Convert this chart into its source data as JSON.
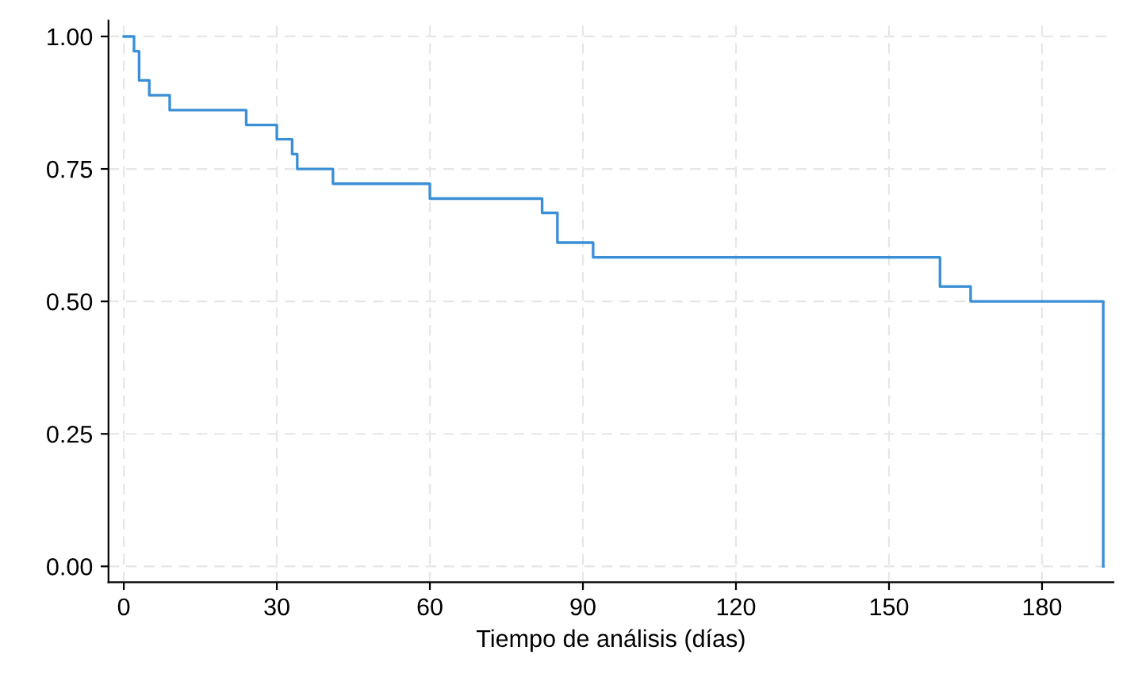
{
  "chart_data": {
    "type": "step",
    "xlabel": "Tiempo de análisis (días)",
    "series": [
      {
        "color": "#3a8fd6",
        "x": [
          0,
          2,
          3,
          5,
          9,
          24,
          30,
          33,
          34,
          41,
          60,
          82,
          85,
          92,
          160,
          166,
          192
        ],
        "values": [
          1.0,
          0.972,
          0.917,
          0.889,
          0.861,
          0.833,
          0.806,
          0.778,
          0.75,
          0.722,
          0.694,
          0.667,
          0.611,
          0.583,
          0.528,
          0.5,
          0.0
        ]
      }
    ],
    "xlim": [
      -3,
      194
    ],
    "xticks": [
      0,
      30,
      60,
      90,
      120,
      150,
      180
    ],
    "ylim": [
      -0.03,
      1.03
    ],
    "yticks": [
      {
        "value": 0,
        "label": "0.00"
      },
      {
        "value": 0.25,
        "label": "0.25"
      },
      {
        "value": 0.5,
        "label": "0.50"
      },
      {
        "value": 0.75,
        "label": "0.75"
      },
      {
        "value": 1,
        "label": "1.00"
      }
    ],
    "grid": true
  }
}
